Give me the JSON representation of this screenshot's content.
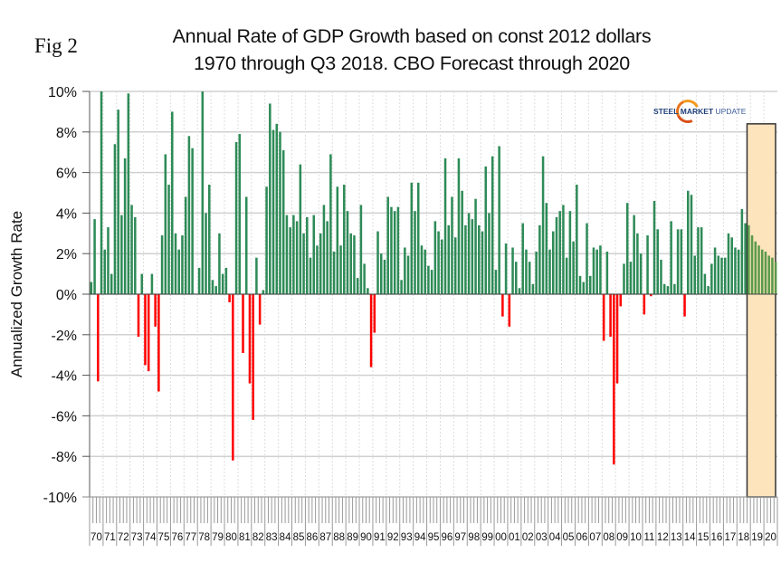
{
  "figure_label": "Fig 2",
  "logo": {
    "part1": "STEEL",
    "part2": "MARKET",
    "part3": "UPDATE"
  },
  "colors": {
    "positive": "#2e8b57",
    "negative": "#ff0000",
    "forecast_fill": "#fde4bd",
    "forecast_border": "#333333",
    "grid": "#d0d0d0"
  },
  "chart_data": {
    "type": "bar",
    "title": "Annual Rate of GDP Growth based on const 2012 dollars",
    "subtitle": "1970 through Q3 2018. CBO Forecast through 2020",
    "xlabel": "",
    "ylabel": "Annualized Growth Rate",
    "ylim": [
      -10,
      10
    ],
    "yticks": [
      10,
      8,
      6,
      4,
      2,
      0,
      -2,
      -4,
      -6,
      -8,
      -10
    ],
    "ytick_labels": [
      "10%",
      "8%",
      "6%",
      "4%",
      "2%",
      "0%",
      "-2%",
      "-4%",
      "-6%",
      "-8%",
      "-10%"
    ],
    "grid": true,
    "frequency": "quarterly",
    "start_year": 1970,
    "categories": [
      "70",
      "71",
      "72",
      "73",
      "74",
      "75",
      "76",
      "77",
      "78",
      "79",
      "80",
      "81",
      "82",
      "83",
      "84",
      "85",
      "86",
      "87",
      "88",
      "89",
      "90",
      "91",
      "92",
      "93",
      "94",
      "95",
      "96",
      "97",
      "98",
      "99",
      "00",
      "01",
      "02",
      "03",
      "04",
      "05",
      "06",
      "07",
      "08",
      "09",
      "10",
      "11",
      "12",
      "13",
      "14",
      "15",
      "16",
      "17",
      "18",
      "19",
      "20"
    ],
    "forecast_region": {
      "start": "2018 Q4",
      "end": "2020 Q4",
      "label": "CBO Forecast"
    },
    "values": [
      0.6,
      3.7,
      -4.3,
      10.0,
      2.2,
      3.3,
      1.0,
      7.4,
      9.1,
      3.9,
      6.7,
      9.9,
      4.4,
      3.8,
      -2.1,
      1.0,
      -3.5,
      -3.8,
      1.0,
      -1.6,
      -4.8,
      2.9,
      6.9,
      5.4,
      9.0,
      3.0,
      2.2,
      2.9,
      4.8,
      7.8,
      7.2,
      0.0,
      1.3,
      10.0,
      4.0,
      5.4,
      0.7,
      0.4,
      3.0,
      1.0,
      1.3,
      -0.4,
      -8.2,
      7.5,
      7.9,
      -2.9,
      4.8,
      -4.4,
      -6.2,
      1.8,
      -1.5,
      0.2,
      5.3,
      9.4,
      8.1,
      8.4,
      8.0,
      7.1,
      3.9,
      3.3,
      3.9,
      3.6,
      6.4,
      3.0,
      3.8,
      1.8,
      3.9,
      2.4,
      3.0,
      4.4,
      3.6,
      6.9,
      2.1,
      5.3,
      2.4,
      5.4,
      4.1,
      3.0,
      2.9,
      0.8,
      4.4,
      1.5,
      0.3,
      -3.6,
      -1.9,
      3.1,
      2.0,
      1.7,
      4.8,
      4.3,
      4.1,
      4.3,
      0.7,
      2.3,
      1.9,
      5.5,
      4.1,
      5.5,
      2.4,
      2.2,
      1.4,
      1.2,
      3.6,
      3.1,
      2.7,
      6.7,
      3.4,
      4.8,
      2.8,
      6.7,
      5.1,
      3.4,
      4.0,
      3.7,
      4.7,
      3.4,
      3.1,
      6.3,
      4.0,
      6.8,
      1.2,
      7.3,
      -1.1,
      2.5,
      -1.6,
      2.3,
      1.6,
      0.3,
      3.5,
      2.2,
      1.6,
      0.5,
      2.1,
      3.4,
      6.8,
      4.5,
      2.2,
      3.1,
      3.8,
      4.1,
      4.4,
      1.8,
      4.1,
      2.6,
      5.4,
      0.9,
      0.6,
      3.5,
      0.9,
      2.3,
      2.2,
      2.4,
      -2.3,
      2.1,
      -2.1,
      -8.4,
      -4.4,
      -0.6,
      1.5,
      4.5,
      1.6,
      3.9,
      3.0,
      2.0,
      -1.0,
      2.9,
      -0.1,
      4.6,
      3.2,
      1.7,
      0.5,
      0.4,
      3.6,
      0.5,
      3.2,
      3.2,
      -1.1,
      5.1,
      4.9,
      1.9,
      3.3,
      3.3,
      1.0,
      0.4,
      1.5,
      2.3,
      1.9,
      1.8,
      1.8,
      3.0,
      2.8,
      2.3,
      2.2,
      4.2,
      3.5,
      3.4,
      2.9,
      2.6,
      2.4,
      2.2,
      2.1,
      1.9,
      1.8,
      1.6
    ]
  }
}
